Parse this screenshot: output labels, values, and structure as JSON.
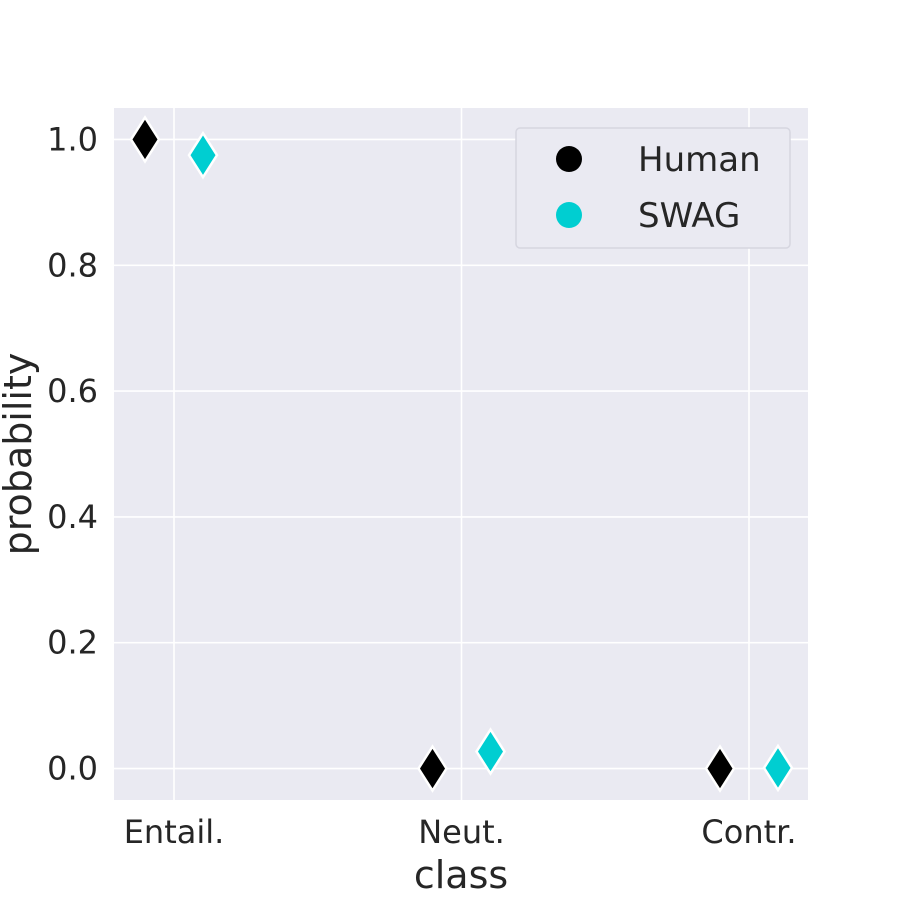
{
  "chart_data": {
    "type": "scatter",
    "categories": [
      "Entail.",
      "Neut.",
      "Contr."
    ],
    "xlabel": "class",
    "ylabel": "probability",
    "ylim": [
      -0.05,
      1.05
    ],
    "yticks": [
      "0.0",
      "0.2",
      "0.4",
      "0.6",
      "0.8",
      "1.0"
    ],
    "grid": true,
    "legend_position": "top-right",
    "series": [
      {
        "name": "Human",
        "color": "#000000",
        "values": [
          1.0,
          0.0,
          0.0
        ]
      },
      {
        "name": "SWAG",
        "color": "#00CED1",
        "values": [
          0.975,
          0.027,
          0.001
        ]
      }
    ],
    "background_color": "#EAEAF2"
  }
}
